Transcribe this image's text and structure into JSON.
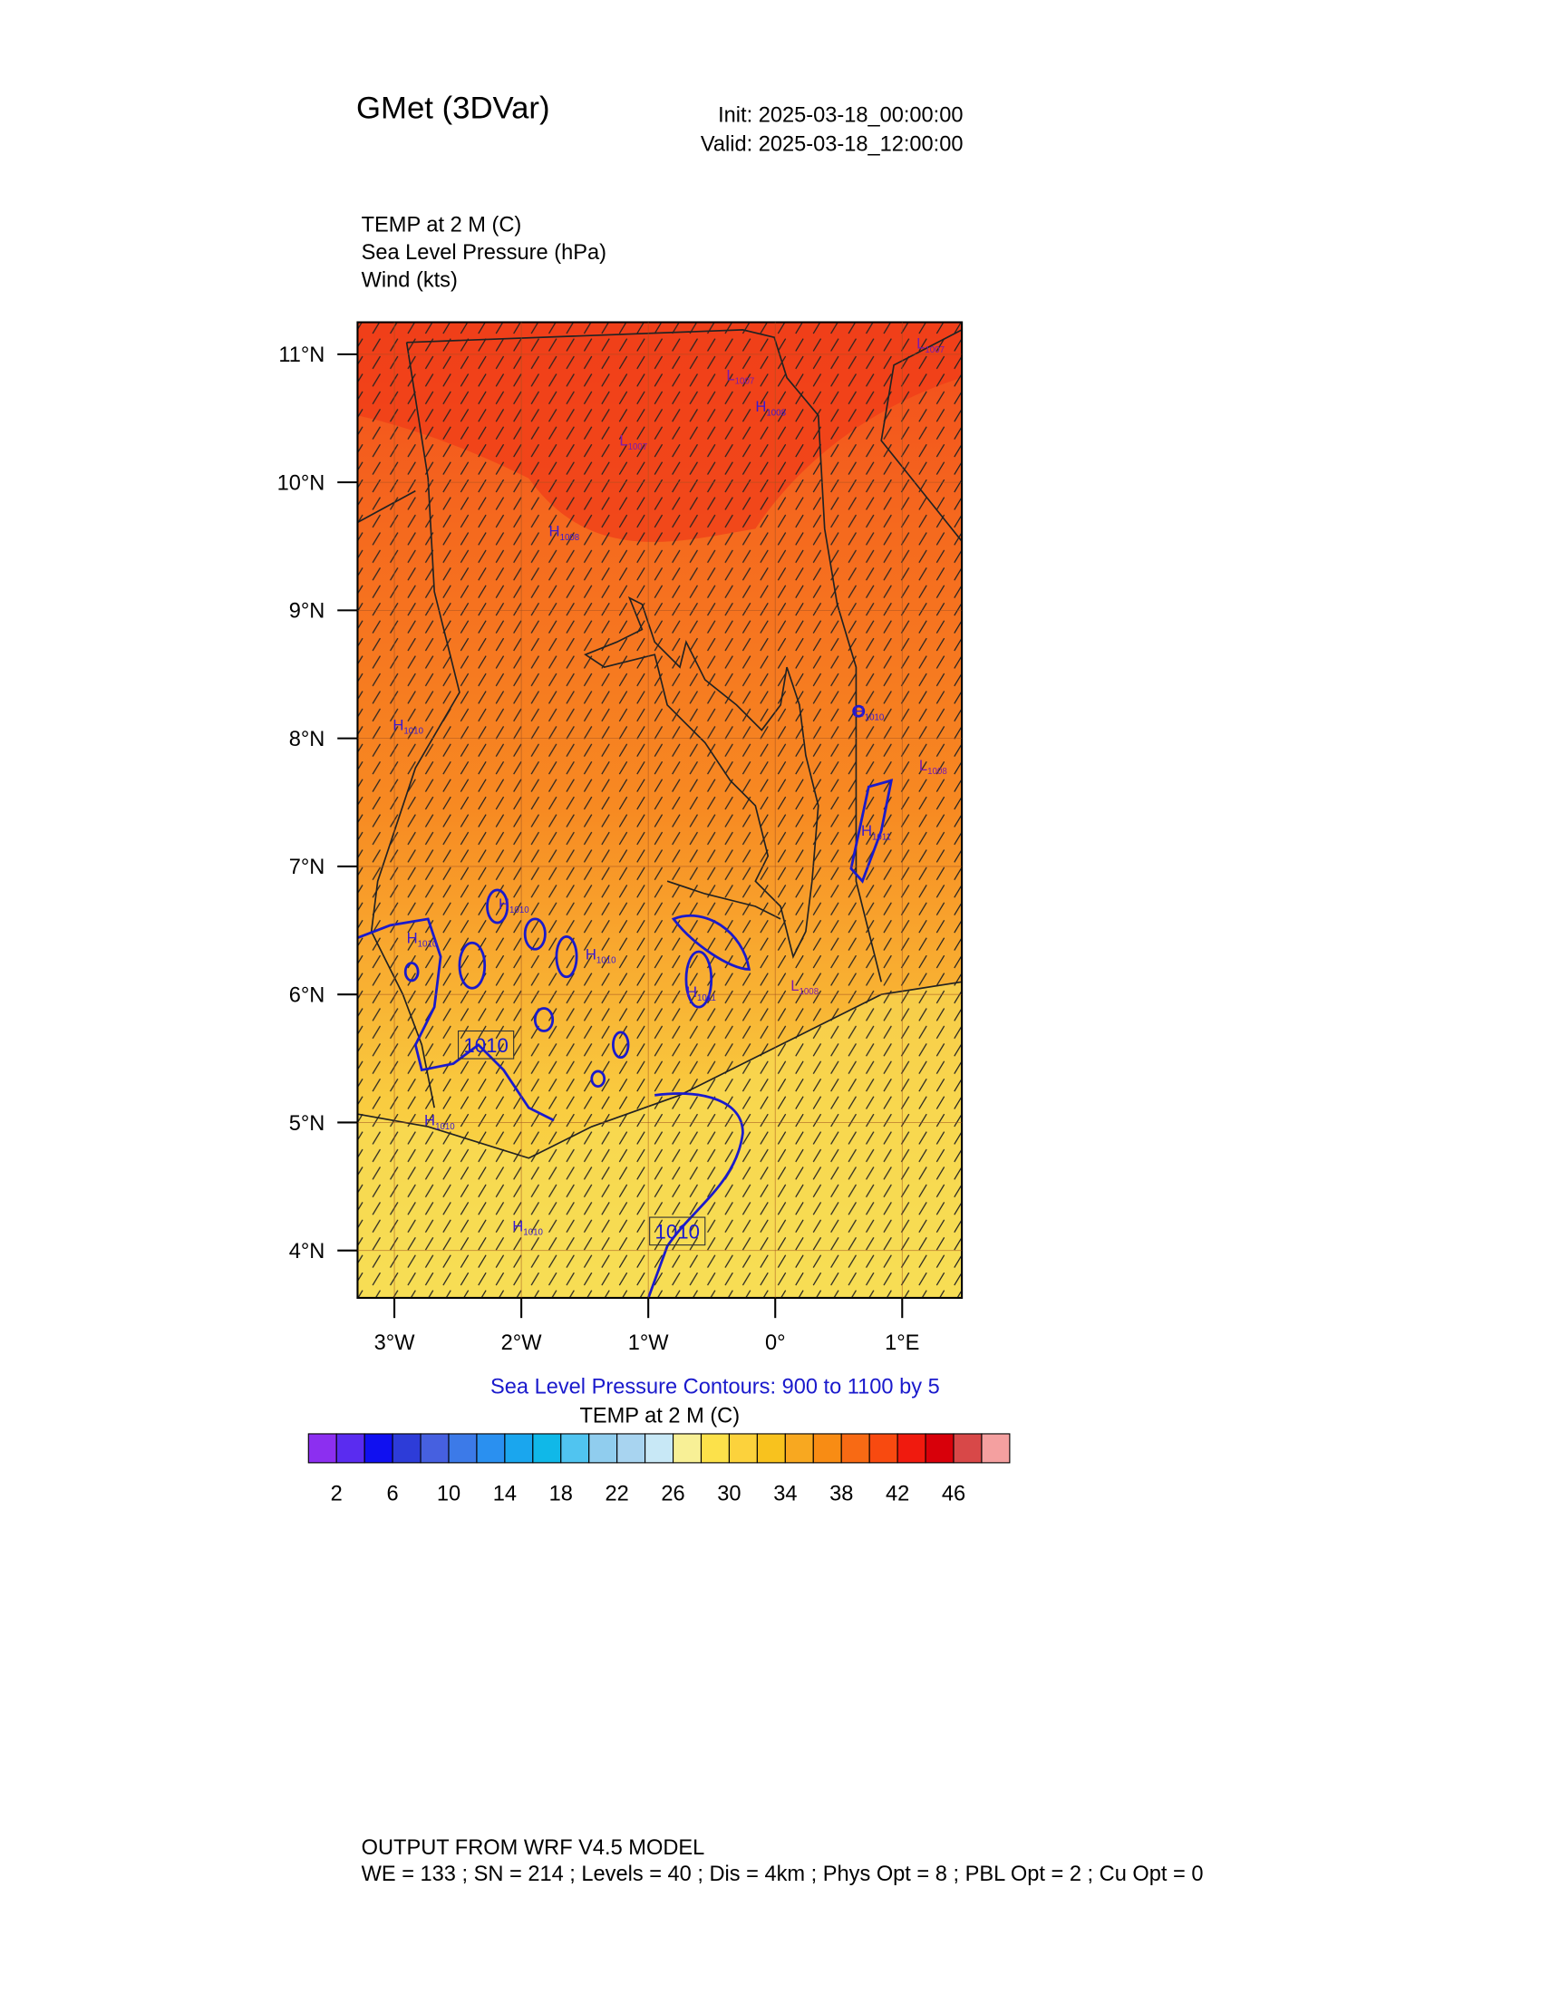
{
  "header": {
    "title": "GMet (3DVar)",
    "init": "Init: 2025-03-18_00:00:00",
    "valid": "Valid: 2025-03-18_12:00:00"
  },
  "fields": [
    "TEMP at 2 M   (C)",
    "Sea Level Pressure   (hPa)",
    "Wind   (kts)"
  ],
  "map": {
    "xlim": [
      -3.29,
      1.47
    ],
    "ylim": [
      3.63,
      11.25
    ],
    "xticks": [
      {
        "value": -3,
        "label": "3°W"
      },
      {
        "value": -2,
        "label": "2°W"
      },
      {
        "value": -1,
        "label": "1°W"
      },
      {
        "value": 0,
        "label": "0°"
      },
      {
        "value": 1,
        "label": "1°E"
      }
    ],
    "yticks": [
      {
        "value": 11,
        "label": "11°N"
      },
      {
        "value": 10,
        "label": "10°N"
      },
      {
        "value": 9,
        "label": "9°N"
      },
      {
        "value": 8,
        "label": "8°N"
      },
      {
        "value": 7,
        "label": "7°N"
      },
      {
        "value": 6,
        "label": "6°N"
      },
      {
        "value": 5,
        "label": "5°N"
      },
      {
        "value": 4,
        "label": "4°N"
      }
    ],
    "pressure_centers": [
      {
        "label": "L",
        "value": 1007
      },
      {
        "label": "L",
        "value": 1007
      },
      {
        "label": "H",
        "value": 1008
      },
      {
        "label": "L",
        "value": 1007
      },
      {
        "label": "H",
        "value": 1008
      },
      {
        "label": "H",
        "value": 1010
      },
      {
        "label": "H",
        "value": 1010
      },
      {
        "label": "L",
        "value": 1008
      },
      {
        "label": "H",
        "value": 1011
      },
      {
        "label": "H",
        "value": 1010
      },
      {
        "label": "H",
        "value": 1010
      },
      {
        "label": "H",
        "value": 1010
      },
      {
        "label": "H",
        "value": 1011
      },
      {
        "label": "L",
        "value": 1008
      },
      {
        "label": "H",
        "value": 1010
      },
      {
        "label": "H",
        "value": 1010
      }
    ],
    "contour_labels": [
      1010,
      1010
    ]
  },
  "contour_note": "Sea Level Pressure Contours: 900 to 1100 by 5",
  "colorbar": {
    "title": "TEMP at 2 M  (C)",
    "lim": [
      0,
      50
    ],
    "ticks": [
      2,
      6,
      10,
      14,
      18,
      22,
      26,
      30,
      34,
      38,
      42,
      46
    ],
    "colors": [
      "#8c2ff0",
      "#5a2cf0",
      "#1010f0",
      "#2d3cd8",
      "#4660e0",
      "#3c7ae8",
      "#2a90f0",
      "#1aa6ee",
      "#10b8e8",
      "#50c4f0",
      "#90cdee",
      "#a8d4f0",
      "#c8e8f6",
      "#f8f096",
      "#fce14a",
      "#fcd23c",
      "#f8c21e",
      "#f8a820",
      "#f88c14",
      "#f86a14",
      "#f84a10",
      "#f01a0e",
      "#d8000a",
      "#d84848",
      "#f4a0a0"
    ]
  },
  "footer": [
    "OUTPUT FROM WRF V4.5 MODEL",
    "WE = 133 ; SN = 214 ; Levels = 40 ; Dis = 4km ; Phys Opt = 8 ; PBL Opt = 2 ; Cu Opt = 0"
  ]
}
